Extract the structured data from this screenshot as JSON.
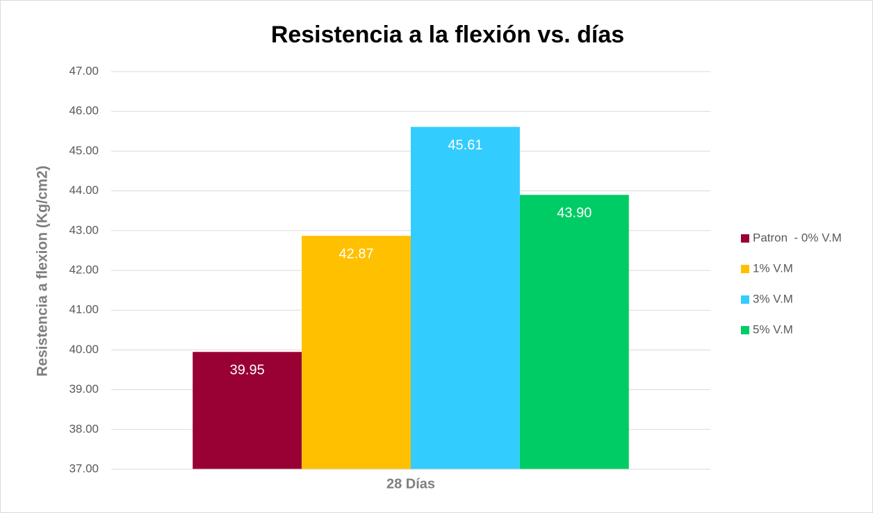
{
  "chart_data": {
    "type": "bar",
    "title": "Resistencia a la flexión vs. días",
    "y_label": "Resistencia a flexion (Kg/cm2)",
    "categories": [
      "28 Días"
    ],
    "series": [
      {
        "name": "Patron  - 0% V.M",
        "color": "#990033",
        "values": [
          39.95
        ],
        "value_labels": [
          "39.95"
        ]
      },
      {
        "name": "1% V.M",
        "color": "#ffc000",
        "values": [
          42.87
        ],
        "value_labels": [
          "42.87"
        ]
      },
      {
        "name": "3% V.M",
        "color": "#33ccff",
        "values": [
          45.61
        ],
        "value_labels": [
          "45.61"
        ]
      },
      {
        "name": "5% V.M",
        "color": "#00cc66",
        "values": [
          43.9
        ],
        "value_labels": [
          "43.90"
        ]
      }
    ],
    "ylim": [
      37,
      47
    ],
    "yticks": [
      {
        "value": 37,
        "label": "37.00"
      },
      {
        "value": 38,
        "label": "38.00"
      },
      {
        "value": 39,
        "label": "39.00"
      },
      {
        "value": 40,
        "label": "40.00"
      },
      {
        "value": 41,
        "label": "41.00"
      },
      {
        "value": 42,
        "label": "42.00"
      },
      {
        "value": 43,
        "label": "43.00"
      },
      {
        "value": 44,
        "label": "44.00"
      },
      {
        "value": 45,
        "label": "45.00"
      },
      {
        "value": 46,
        "label": "46.00"
      },
      {
        "value": 47,
        "label": "47.00"
      }
    ],
    "grid": true,
    "legend": "right"
  }
}
